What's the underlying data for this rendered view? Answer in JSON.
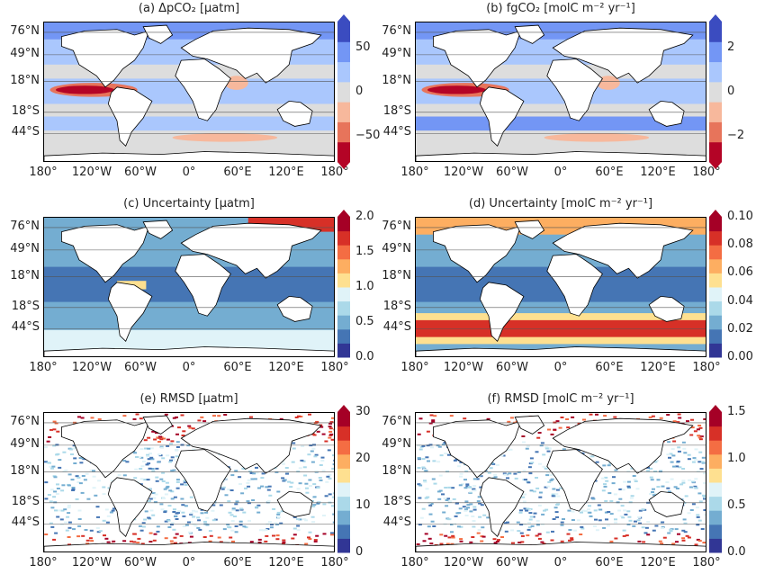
{
  "lat_labels": [
    "76°N",
    "49°N",
    "18°N",
    "18°S",
    "44°S"
  ],
  "lon_labels": [
    "180°",
    "120°W",
    "60°W",
    "0°",
    "60°E",
    "120°E",
    "180°"
  ],
  "panels": [
    {
      "id": "a",
      "title": "(a) ΔpCO₂ [μatm]",
      "scheme": "diverging",
      "colorbar": {
        "ticks": [
          "50",
          "0",
          "−50"
        ],
        "min": -80,
        "max": 80,
        "extend": "both"
      }
    },
    {
      "id": "b",
      "title": "(b) fgCO₂ [molC m⁻² yr⁻¹]",
      "scheme": "diverging",
      "colorbar": {
        "ticks": [
          "2",
          "0",
          "−2"
        ],
        "min": -3.2,
        "max": 3.2,
        "extend": "both"
      }
    },
    {
      "id": "c",
      "title": "(c) Uncertainty [μatm]",
      "scheme": "spectral",
      "colorbar": {
        "ticks": [
          "2.0",
          "1.5",
          "1.0",
          "0.5",
          "0.0"
        ],
        "min": 0,
        "max": 2,
        "extend": "max"
      }
    },
    {
      "id": "d",
      "title": "(d) Uncertainty [molC m⁻² yr⁻¹]",
      "scheme": "spectral",
      "colorbar": {
        "ticks": [
          "0.10",
          "0.08",
          "0.06",
          "0.04",
          "0.02",
          "0.00"
        ],
        "min": 0,
        "max": 0.1,
        "extend": "max"
      }
    },
    {
      "id": "e",
      "title": "(e) RMSD [μatm]",
      "scheme": "sparse",
      "colorbar": {
        "ticks": [
          "30",
          "20",
          "10",
          "0"
        ],
        "min": 0,
        "max": 30,
        "extend": "max"
      }
    },
    {
      "id": "f",
      "title": "(f) RMSD [molC m⁻² yr⁻¹]",
      "scheme": "sparse",
      "colorbar": {
        "ticks": [
          "1.5",
          "1.0",
          "0.5",
          "0.0"
        ],
        "min": 0,
        "max": 1.5,
        "extend": "max"
      }
    }
  ],
  "colors": {
    "diverging": [
      "#b40426",
      "#e7745b",
      "#f7b89c",
      "#dddddd",
      "#aac7fd",
      "#7396f5",
      "#3b4cc0"
    ],
    "spectral": [
      "#313695",
      "#4575b4",
      "#74add1",
      "#abd9e9",
      "#e0f3f8",
      "#fee090",
      "#fdae61",
      "#f46d43",
      "#d73027",
      "#a50026"
    ],
    "land": "#ffffff",
    "coast": "#000000"
  }
}
